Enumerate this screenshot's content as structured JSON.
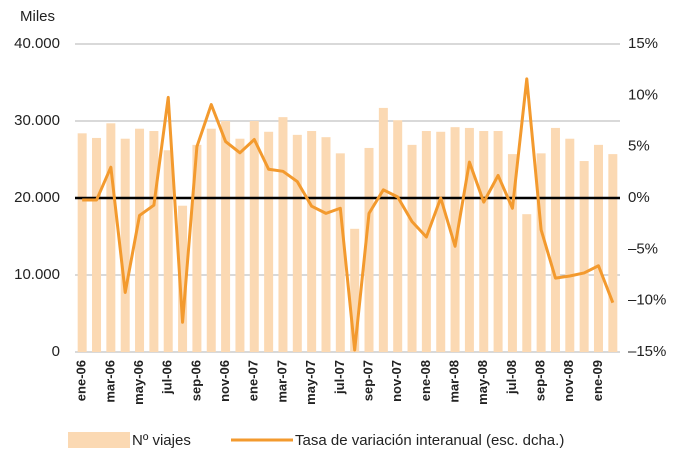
{
  "chart_data": {
    "type": "bar_line",
    "ylabel": "Miles",
    "categories": [
      "ene-06",
      null,
      "mar-06",
      null,
      "may-06",
      null,
      "jul-06",
      null,
      "sep-06",
      null,
      "nov-06",
      null,
      "ene-07",
      null,
      "mar-07",
      null,
      "may-07",
      null,
      "jul-07",
      null,
      "sep-07",
      null,
      "nov-07",
      null,
      "ene-08",
      null,
      "mar-08",
      null,
      "may-08",
      null,
      "jul-08",
      null,
      "sep-08",
      null,
      "nov-08",
      null,
      "ene-09",
      null
    ],
    "series": [
      {
        "name": "Nº viajes",
        "type": "bar",
        "color": "#fbd9b3",
        "values": [
          28400,
          27800,
          29700,
          27700,
          29000,
          28700,
          26200,
          19000,
          26900,
          29000,
          30000,
          27700,
          30000,
          28600,
          30500,
          28200,
          28700,
          27900,
          25800,
          16000,
          26500,
          31700,
          30100,
          26900,
          28700,
          28600,
          29200,
          29100,
          28700,
          28700,
          25700,
          17900,
          25800,
          29100,
          27700,
          24800,
          26900,
          25700
        ]
      },
      {
        "name": "Tasa de variación interanual (esc. dcha.)",
        "type": "line",
        "axis": "y2",
        "color": "#f39a2e",
        "values": [
          -0.2,
          -0.2,
          3.0,
          -9.2,
          -1.7,
          -0.7,
          9.8,
          -12.1,
          5.0,
          9.1,
          5.5,
          4.4,
          5.7,
          2.8,
          2.6,
          1.6,
          -0.8,
          -1.5,
          -1.0,
          -14.8,
          -1.5,
          0.8,
          0.1,
          -2.3,
          -3.8,
          0,
          -4.7,
          3.5,
          -0.4,
          2.2,
          -1.0,
          11.6,
          -3.1,
          -7.8,
          -7.6,
          -7.3,
          -6.6,
          -10.2
        ]
      }
    ],
    "ylim": [
      0,
      40000
    ],
    "yticks": [
      0,
      {
        "value": 10000,
        "label": "10.000"
      },
      {
        "value": 20000,
        "label": "20.000"
      },
      {
        "value": 30000,
        "label": "30.000"
      },
      {
        "value": 40000,
        "label": "40.000"
      }
    ],
    "y2lim": [
      -15,
      15
    ],
    "y2ticks": [
      {
        "value": -15,
        "label": "–15%"
      },
      {
        "value": -10,
        "label": "–10%"
      },
      {
        "value": -5,
        "label": "–5%"
      },
      {
        "value": 0,
        "label": "0%"
      },
      {
        "value": 5,
        "label": "5%"
      },
      {
        "value": 10,
        "label": "10%"
      },
      {
        "value": 15,
        "label": "15%"
      }
    ],
    "grid": true,
    "legend": "bottom"
  }
}
